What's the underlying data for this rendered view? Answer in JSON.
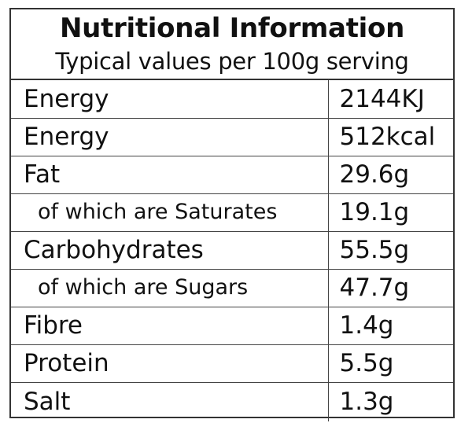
{
  "header": {
    "title": "Nutritional Information",
    "subtitle": "Typical values per 100g serving"
  },
  "rows": [
    {
      "label": "Energy",
      "value": "2144KJ",
      "sub": false
    },
    {
      "label": "Energy",
      "value": "512kcal",
      "sub": false
    },
    {
      "label": "Fat",
      "value": "29.6g",
      "sub": false
    },
    {
      "label": "of which are Saturates",
      "value": "19.1g",
      "sub": true
    },
    {
      "label": "Carbohydrates",
      "value": "55.5g",
      "sub": false
    },
    {
      "label": "of which are Sugars",
      "value": "47.7g",
      "sub": true
    },
    {
      "label": "Fibre",
      "value": "1.4g",
      "sub": false
    },
    {
      "label": "Protein",
      "value": "5.5g",
      "sub": false
    },
    {
      "label": "Salt",
      "value": "1.3g",
      "sub": false
    }
  ]
}
